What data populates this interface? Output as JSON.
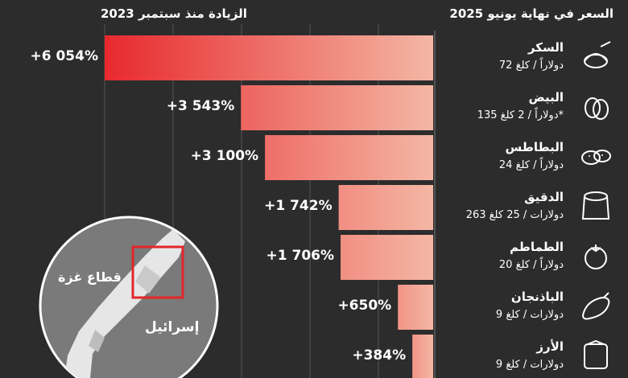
{
  "chart_data": {
    "type": "bar",
    "title": "الزيادة منذ سبتمبر 2023",
    "subtitle": "السعر في نهاية يونيو 2025",
    "categories": [
      "السكر",
      "البيض",
      "البطاطس",
      "الدقيق",
      "الطماطم",
      "الباذنجان",
      "الأرز"
    ],
    "values": [
      6054,
      3543,
      3100,
      1742,
      1706,
      650,
      384
    ],
    "value_labels": [
      "+6 054%",
      "+3 543%",
      "+3 100%",
      "+1 742%",
      "+1 706%",
      "+650%",
      "+384%"
    ],
    "prices": [
      "72 دولاراً / كلغ",
      "135 دولاراً / 2 كلغ*",
      "24 دولاراً / كلغ",
      "263 دولارات / 25 كلغ",
      "20 دولاراً / كلغ",
      "9 دولارات / كلغ",
      "9 دولارات / كلغ"
    ],
    "icons": [
      "sugar-bowl-icon",
      "egg-icon",
      "potato-icon",
      "flour-sack-icon",
      "tomato-icon",
      "eggplant-icon",
      "rice-sack-icon"
    ],
    "bar_color_strong": "#e8292e",
    "bar_color_light": "#f4b7a4",
    "ylim": [
      0,
      6054
    ],
    "grid": true
  },
  "map": {
    "label_gaza": "قطاع غزة",
    "label_israel": "إسرائيل"
  }
}
